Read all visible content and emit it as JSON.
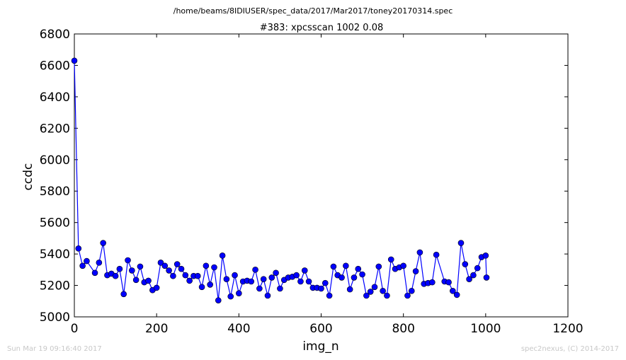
{
  "chart_data": {
    "type": "line",
    "suptitle": "/home/beams/8IDIUSER/spec_data/2017/Mar2017/toney20170314.spec",
    "title": "#383: xpcsscan 1002 0.08",
    "xlabel": "img_n",
    "ylabel": "ccdc",
    "xlim": [
      0,
      1200
    ],
    "ylim": [
      5000,
      6800
    ],
    "xticks": [
      0,
      200,
      400,
      600,
      800,
      1000,
      1200
    ],
    "yticks": [
      5000,
      5200,
      5400,
      5600,
      5800,
      6000,
      6200,
      6400,
      6600,
      6800
    ],
    "grid": false,
    "series": [
      {
        "color": "#0000ff",
        "marker": "circle",
        "x": [
          0,
          10,
          20,
          30,
          50,
          60,
          70,
          80,
          90,
          100,
          110,
          120,
          130,
          140,
          150,
          160,
          170,
          180,
          190,
          200,
          210,
          220,
          230,
          240,
          250,
          260,
          270,
          280,
          290,
          300,
          310,
          320,
          330,
          340,
          350,
          360,
          370,
          380,
          390,
          400,
          410,
          420,
          430,
          440,
          450,
          460,
          470,
          480,
          490,
          500,
          510,
          520,
          530,
          540,
          550,
          560,
          570,
          580,
          590,
          600,
          610,
          620,
          630,
          640,
          650,
          660,
          670,
          680,
          690,
          700,
          710,
          720,
          730,
          740,
          750,
          760,
          770,
          780,
          790,
          800,
          810,
          820,
          830,
          840,
          850,
          860,
          870,
          880,
          900,
          910,
          920,
          930,
          940,
          950,
          960,
          970,
          980,
          990,
          1000,
          1002
        ],
        "y": [
          6630,
          5435,
          5325,
          5355,
          5280,
          5345,
          5470,
          5265,
          5275,
          5260,
          5305,
          5145,
          5360,
          5295,
          5235,
          5320,
          5220,
          5230,
          5170,
          5185,
          5345,
          5325,
          5295,
          5260,
          5335,
          5305,
          5265,
          5230,
          5260,
          5260,
          5190,
          5325,
          5205,
          5315,
          5105,
          5390,
          5240,
          5130,
          5265,
          5150,
          5225,
          5230,
          5225,
          5300,
          5180,
          5240,
          5135,
          5250,
          5280,
          5180,
          5235,
          5250,
          5255,
          5265,
          5225,
          5295,
          5225,
          5185,
          5185,
          5180,
          5215,
          5135,
          5320,
          5265,
          5250,
          5325,
          5175,
          5250,
          5305,
          5270,
          5135,
          5160,
          5190,
          5320,
          5165,
          5135,
          5365,
          5305,
          5315,
          5325,
          5135,
          5165,
          5290,
          5410,
          5210,
          5215,
          5220,
          5395,
          5225,
          5220,
          5165,
          5140,
          5470,
          5335,
          5240,
          5265,
          5310,
          5380,
          5390,
          5250
        ]
      }
    ]
  },
  "footer": {
    "timestamp": "Sun Mar 19 09:16:40 2017",
    "credit": "spec2nexus, (C) 2014-2017"
  }
}
